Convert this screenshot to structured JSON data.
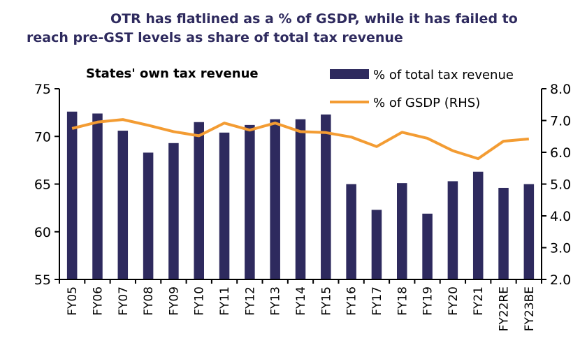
{
  "title": {
    "line1": "OTR has flatlined as a % of GSDP, while it has failed to",
    "line2": "reach pre-GST levels as share of total tax revenue"
  },
  "chart_data": {
    "type": "bar",
    "title": "States' own tax revenue",
    "categories": [
      "FY05",
      "FY06",
      "FY07",
      "FY08",
      "FY09",
      "FY10",
      "FY11",
      "FY12",
      "FY13",
      "FY14",
      "FY15",
      "FY16",
      "FY17",
      "FY18",
      "FY19",
      "FY20",
      "FY21",
      "FY22RE",
      "FY23BE"
    ],
    "series": [
      {
        "name": "% of total tax revenue",
        "type": "bar",
        "axis": "left",
        "color": "#2e2a5e",
        "values": [
          72.6,
          72.4,
          70.6,
          68.3,
          69.3,
          71.5,
          70.4,
          71.2,
          71.8,
          71.8,
          72.3,
          65.0,
          62.3,
          65.1,
          61.9,
          65.3,
          66.3,
          64.6,
          65.0
        ]
      },
      {
        "name": "% of GSDP (RHS)",
        "type": "line",
        "axis": "right",
        "color": "#f39c33",
        "values": [
          6.75,
          6.95,
          7.03,
          6.85,
          6.65,
          6.52,
          6.92,
          6.7,
          6.92,
          6.65,
          6.62,
          6.48,
          6.18,
          6.63,
          6.44,
          6.05,
          5.8,
          6.35,
          6.42
        ]
      }
    ],
    "y_left": {
      "ylim": [
        55,
        75
      ],
      "ticks": [
        "55",
        "60",
        "65",
        "70",
        "75"
      ],
      "tick_values": [
        55,
        60,
        65,
        70,
        75
      ]
    },
    "y_right": {
      "ylim": [
        2.0,
        8.0
      ],
      "ticks": [
        "2.0",
        "3.0",
        "4.0",
        "5.0",
        "6.0",
        "7.0",
        "8.0"
      ],
      "tick_values": [
        2,
        3,
        4,
        5,
        6,
        7,
        8
      ]
    },
    "xlabel": "",
    "ylabel": "",
    "grid": false,
    "legend_position": "top-right"
  }
}
